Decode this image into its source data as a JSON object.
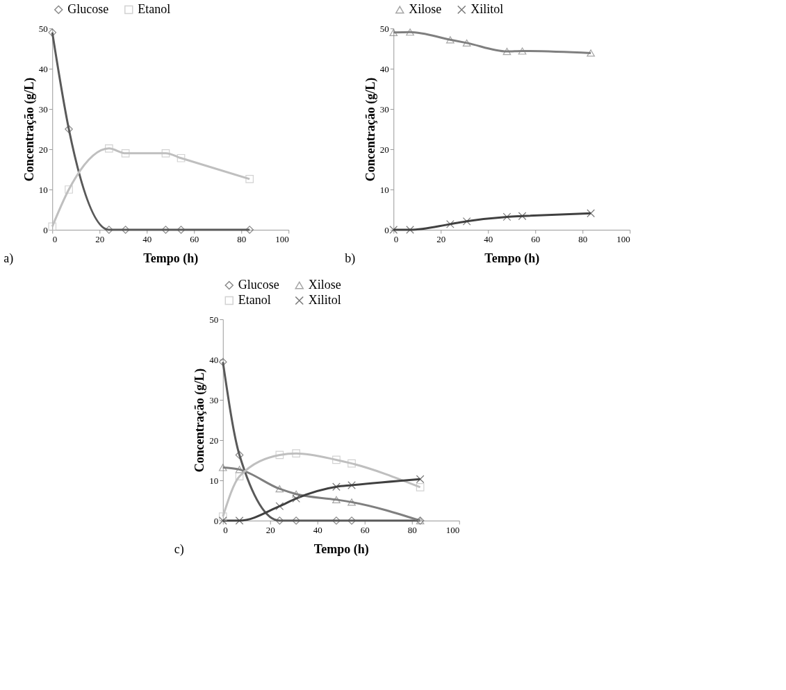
{
  "chart_data": [
    {
      "type": "line",
      "xlabel": "Tempo (h)",
      "ylabel": "Concentração (g/L)",
      "xlim": [
        0,
        100
      ],
      "xticks": [
        0,
        20,
        40,
        60,
        80,
        100
      ],
      "ylim": [
        0,
        50
      ],
      "yticks": [
        0,
        10,
        20,
        30,
        40,
        50
      ],
      "grid": false,
      "legend": "top",
      "annotations": [
        "a)"
      ],
      "series": [
        {
          "name": "Glucose",
          "color": "#595959",
          "marker": "diamond",
          "x": [
            0,
            7,
            24,
            31,
            48,
            54.5,
            83.5
          ],
          "values": [
            49,
            25,
            0,
            0,
            0,
            0,
            0
          ]
        },
        {
          "name": "Etanol",
          "color": "#bfbfbf",
          "marker": "square",
          "x": [
            0,
            7,
            24,
            31,
            48,
            54.5,
            83.5
          ],
          "values": [
            0.8,
            10,
            20.2,
            19,
            19,
            17.8,
            12.6
          ]
        }
      ]
    },
    {
      "type": "line",
      "xlabel": "Tempo (h)",
      "ylabel": "Concentração (g/L)",
      "xlim": [
        0,
        100
      ],
      "xticks": [
        0,
        20,
        40,
        60,
        80,
        100
      ],
      "ylim": [
        0,
        50
      ],
      "yticks": [
        0,
        10,
        20,
        30,
        40,
        50
      ],
      "grid": false,
      "legend": "top",
      "annotations": [
        "b)"
      ],
      "series": [
        {
          "name": "Xilose",
          "color": "#7f7f7f",
          "marker": "triangle",
          "x": [
            0,
            7,
            24,
            31,
            48,
            54.5,
            83.5
          ],
          "values": [
            49,
            49.1,
            47.2,
            46.4,
            44.3,
            44.4,
            43.9
          ]
        },
        {
          "name": "Xilitol",
          "color": "#404040",
          "marker": "cross",
          "x": [
            0,
            7,
            24,
            31,
            48,
            54.5,
            83.5
          ],
          "values": [
            0,
            0,
            1.4,
            2.1,
            3.2,
            3.4,
            4.1
          ]
        }
      ]
    },
    {
      "type": "line",
      "xlabel": "Tempo  (h)",
      "ylabel": "Concentração (g/L)",
      "xlim": [
        0,
        100
      ],
      "xticks": [
        0,
        20,
        40,
        60,
        80,
        100
      ],
      "ylim": [
        0,
        50
      ],
      "yticks": [
        0,
        10,
        20,
        30,
        40,
        50
      ],
      "grid": false,
      "legend": "top",
      "annotations": [
        "c)"
      ],
      "series": [
        {
          "name": "Glucose",
          "color": "#595959",
          "marker": "diamond",
          "x": [
            0,
            7,
            24,
            31,
            48,
            54.5,
            83.5
          ],
          "values": [
            39.4,
            16.3,
            0,
            0,
            0,
            0,
            0
          ]
        },
        {
          "name": "Xilose",
          "color": "#7f7f7f",
          "marker": "triangle",
          "x": [
            0,
            7,
            24,
            31,
            48,
            54.5,
            83.5
          ],
          "values": [
            13.2,
            12.7,
            7.9,
            6.6,
            5.2,
            4.6,
            0
          ]
        },
        {
          "name": "Etanol",
          "color": "#bfbfbf",
          "marker": "square",
          "x": [
            0,
            7,
            24,
            31,
            48,
            54.5,
            83.5
          ],
          "values": [
            1,
            11,
            16.3,
            16.7,
            15.1,
            14.2,
            8.3
          ]
        },
        {
          "name": "Xilitol",
          "color": "#404040",
          "marker": "cross",
          "x": [
            0,
            7,
            24,
            31,
            48,
            54.5,
            83.5
          ],
          "values": [
            0,
            0,
            3.6,
            5.5,
            8.4,
            8.8,
            10.3
          ]
        }
      ]
    }
  ]
}
